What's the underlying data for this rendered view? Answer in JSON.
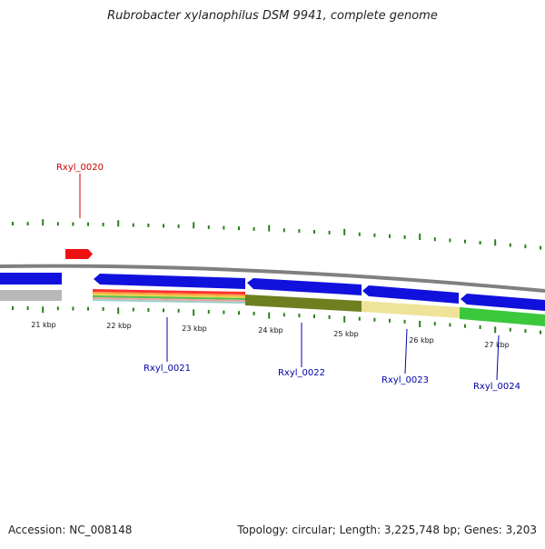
{
  "title": "Rubrobacter xylanophilus DSM 9941, complete genome",
  "footer": {
    "accession": "Accession: NC_008148",
    "topology": "Topology: circular; Length: 3,225,748 bp; Genes: 3,203"
  },
  "colors": {
    "backbone": "#808080",
    "forward_feature": "#ee1111",
    "reverse_feature": "#1111dd",
    "tick": "#2a7f1a",
    "forward_label": "#cc0000",
    "reverse_label": "#0000aa"
  },
  "ruler": {
    "labels": [
      "21 kbp",
      "22 kbp",
      "23 kbp",
      "24 kbp",
      "25 kbp",
      "26 kbp",
      "27 kbp"
    ]
  },
  "genes": [
    {
      "label": "Rxyl_0020",
      "strand": "forward",
      "color": "#ee1111"
    },
    {
      "label": "Rxyl_0021",
      "strand": "reverse",
      "color": "#1111dd"
    },
    {
      "label": "Rxyl_0022",
      "strand": "reverse",
      "color": "#1111dd"
    },
    {
      "label": "Rxyl_0023",
      "strand": "reverse",
      "color": "#1111dd"
    },
    {
      "label": "Rxyl_0024",
      "strand": "reverse",
      "color": "#1111dd"
    }
  ],
  "annotation_track": {
    "segment_colors": [
      "#b8b8b8",
      "#ff3b3b",
      "#7aa33a",
      "#6e7f1f",
      "#efe39a",
      "#3cc83c"
    ]
  }
}
